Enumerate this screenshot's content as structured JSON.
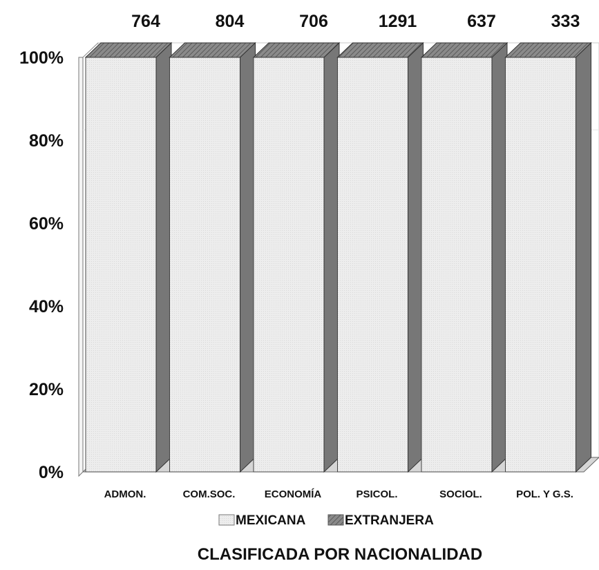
{
  "chart_data": {
    "type": "bar",
    "stacked_percent": true,
    "three_d": true,
    "categories": [
      "ADMON.",
      "COM.SOC.",
      "ECONOMÍA",
      "PSICOL.",
      "SOCIOL.",
      "POL. Y G.S."
    ],
    "totals": [
      764,
      804,
      706,
      1291,
      637,
      333
    ],
    "series": [
      {
        "name": "MEXICANA",
        "values": [
          100,
          100,
          100,
          100,
          100,
          100
        ],
        "color": "#eeeeee"
      },
      {
        "name": "EXTRANJERA",
        "values": [
          0,
          0,
          0,
          0,
          0,
          0
        ],
        "color": "#9a9a9a"
      }
    ],
    "yticks": [
      "0%",
      "20%",
      "40%",
      "60%",
      "80%",
      "100%"
    ],
    "ylim": [
      0,
      100
    ],
    "title": "CLASIFICADA POR NACIONALIDAD",
    "legend_position": "bottom",
    "grid": false
  }
}
